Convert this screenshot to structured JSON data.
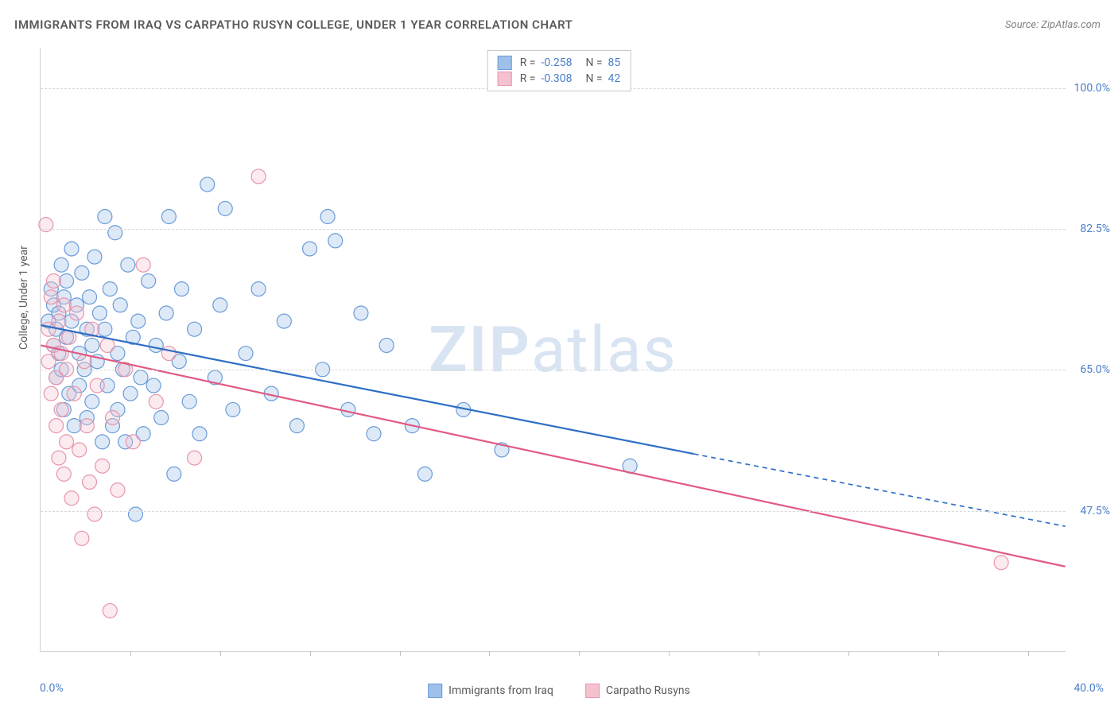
{
  "title": "IMMIGRANTS FROM IRAQ VS CARPATHO RUSYN COLLEGE, UNDER 1 YEAR CORRELATION CHART",
  "source": "Source: ZipAtlas.com",
  "watermark_a": "ZIP",
  "watermark_b": "atlas",
  "y_axis_title": "College, Under 1 year",
  "chart": {
    "type": "scatter",
    "xlim": [
      0,
      40
    ],
    "ylim": [
      30,
      105
    ],
    "x_ticks_minor": [
      3.5,
      7,
      10.5,
      14,
      17.5,
      21,
      24.5,
      28,
      31.5,
      35,
      38.5
    ],
    "x_label_min": "0.0%",
    "x_label_max": "40.0%",
    "y_ticks": [
      {
        "v": 47.5,
        "label": "47.5%"
      },
      {
        "v": 65.0,
        "label": "65.0%"
      },
      {
        "v": 82.5,
        "label": "82.5%"
      },
      {
        "v": 100.0,
        "label": "100.0%"
      }
    ],
    "background_color": "#ffffff",
    "grid_color": "#d8d8d8",
    "marker_radius": 9,
    "marker_fill_opacity": 0.35,
    "marker_stroke_width": 1.2,
    "line_width": 2.2,
    "series": [
      {
        "key": "iraq",
        "label": "Immigrants from Iraq",
        "color_fill": "#9fc0e8",
        "color_stroke": "#6a9bd8",
        "line_color": "#2e6fc4",
        "R": "-0.258",
        "N": "85",
        "reg_start": {
          "x": 0.0,
          "y": 70.5
        },
        "reg_solid_end": {
          "x": 25.5,
          "y": 54.5
        },
        "reg_dash_end": {
          "x": 40.0,
          "y": 45.5
        },
        "points": [
          {
            "x": 0.3,
            "y": 71
          },
          {
            "x": 0.4,
            "y": 75
          },
          {
            "x": 0.5,
            "y": 68
          },
          {
            "x": 0.5,
            "y": 73
          },
          {
            "x": 0.6,
            "y": 70
          },
          {
            "x": 0.6,
            "y": 64
          },
          {
            "x": 0.7,
            "y": 72
          },
          {
            "x": 0.7,
            "y": 67
          },
          {
            "x": 0.8,
            "y": 78
          },
          {
            "x": 0.8,
            "y": 65
          },
          {
            "x": 0.9,
            "y": 74
          },
          {
            "x": 0.9,
            "y": 60
          },
          {
            "x": 1.0,
            "y": 69
          },
          {
            "x": 1.0,
            "y": 76
          },
          {
            "x": 1.1,
            "y": 62
          },
          {
            "x": 1.2,
            "y": 80
          },
          {
            "x": 1.2,
            "y": 71
          },
          {
            "x": 1.3,
            "y": 58
          },
          {
            "x": 1.4,
            "y": 73
          },
          {
            "x": 1.5,
            "y": 67
          },
          {
            "x": 1.5,
            "y": 63
          },
          {
            "x": 1.6,
            "y": 77
          },
          {
            "x": 1.7,
            "y": 65
          },
          {
            "x": 1.8,
            "y": 70
          },
          {
            "x": 1.8,
            "y": 59
          },
          {
            "x": 1.9,
            "y": 74
          },
          {
            "x": 2.0,
            "y": 68
          },
          {
            "x": 2.0,
            "y": 61
          },
          {
            "x": 2.1,
            "y": 79
          },
          {
            "x": 2.2,
            "y": 66
          },
          {
            "x": 2.3,
            "y": 72
          },
          {
            "x": 2.4,
            "y": 56
          },
          {
            "x": 2.5,
            "y": 70
          },
          {
            "x": 2.5,
            "y": 84
          },
          {
            "x": 2.6,
            "y": 63
          },
          {
            "x": 2.7,
            "y": 75
          },
          {
            "x": 2.8,
            "y": 58
          },
          {
            "x": 2.9,
            "y": 82
          },
          {
            "x": 3.0,
            "y": 67
          },
          {
            "x": 3.0,
            "y": 60
          },
          {
            "x": 3.1,
            "y": 73
          },
          {
            "x": 3.2,
            "y": 65
          },
          {
            "x": 3.3,
            "y": 56
          },
          {
            "x": 3.4,
            "y": 78
          },
          {
            "x": 3.5,
            "y": 62
          },
          {
            "x": 3.6,
            "y": 69
          },
          {
            "x": 3.7,
            "y": 47
          },
          {
            "x": 3.8,
            "y": 71
          },
          {
            "x": 3.9,
            "y": 64
          },
          {
            "x": 4.0,
            "y": 57
          },
          {
            "x": 4.2,
            "y": 76
          },
          {
            "x": 4.4,
            "y": 63
          },
          {
            "x": 4.5,
            "y": 68
          },
          {
            "x": 4.7,
            "y": 59
          },
          {
            "x": 4.9,
            "y": 72
          },
          {
            "x": 5.0,
            "y": 84
          },
          {
            "x": 5.2,
            "y": 52
          },
          {
            "x": 5.4,
            "y": 66
          },
          {
            "x": 5.5,
            "y": 75
          },
          {
            "x": 5.8,
            "y": 61
          },
          {
            "x": 6.0,
            "y": 70
          },
          {
            "x": 6.2,
            "y": 57
          },
          {
            "x": 6.5,
            "y": 88
          },
          {
            "x": 6.8,
            "y": 64
          },
          {
            "x": 7.0,
            "y": 73
          },
          {
            "x": 7.2,
            "y": 85
          },
          {
            "x": 7.5,
            "y": 60
          },
          {
            "x": 8.0,
            "y": 67
          },
          {
            "x": 8.5,
            "y": 75
          },
          {
            "x": 9.0,
            "y": 62
          },
          {
            "x": 9.5,
            "y": 71
          },
          {
            "x": 10.0,
            "y": 58
          },
          {
            "x": 10.5,
            "y": 80
          },
          {
            "x": 11.0,
            "y": 65
          },
          {
            "x": 11.2,
            "y": 84
          },
          {
            "x": 11.5,
            "y": 81
          },
          {
            "x": 12.0,
            "y": 60
          },
          {
            "x": 12.5,
            "y": 72
          },
          {
            "x": 13.0,
            "y": 57
          },
          {
            "x": 13.5,
            "y": 68
          },
          {
            "x": 14.5,
            "y": 58
          },
          {
            "x": 15.0,
            "y": 52
          },
          {
            "x": 16.5,
            "y": 60
          },
          {
            "x": 18.0,
            "y": 55
          },
          {
            "x": 23.0,
            "y": 53
          }
        ]
      },
      {
        "key": "rusyn",
        "label": "Carpatho Rusyns",
        "color_fill": "#f4c2cf",
        "color_stroke": "#e894ab",
        "line_color": "#e15a82",
        "R": "-0.308",
        "N": "42",
        "reg_start": {
          "x": 0.0,
          "y": 68.0
        },
        "reg_solid_end": {
          "x": 40.0,
          "y": 40.5
        },
        "reg_dash_end": null,
        "points": [
          {
            "x": 0.2,
            "y": 83
          },
          {
            "x": 0.3,
            "y": 70
          },
          {
            "x": 0.3,
            "y": 66
          },
          {
            "x": 0.4,
            "y": 74
          },
          {
            "x": 0.4,
            "y": 62
          },
          {
            "x": 0.5,
            "y": 68
          },
          {
            "x": 0.5,
            "y": 76
          },
          {
            "x": 0.6,
            "y": 64
          },
          {
            "x": 0.6,
            "y": 58
          },
          {
            "x": 0.7,
            "y": 71
          },
          {
            "x": 0.7,
            "y": 54
          },
          {
            "x": 0.8,
            "y": 67
          },
          {
            "x": 0.8,
            "y": 60
          },
          {
            "x": 0.9,
            "y": 73
          },
          {
            "x": 0.9,
            "y": 52
          },
          {
            "x": 1.0,
            "y": 65
          },
          {
            "x": 1.0,
            "y": 56
          },
          {
            "x": 1.1,
            "y": 69
          },
          {
            "x": 1.2,
            "y": 49
          },
          {
            "x": 1.3,
            "y": 62
          },
          {
            "x": 1.4,
            "y": 72
          },
          {
            "x": 1.5,
            "y": 55
          },
          {
            "x": 1.6,
            "y": 44
          },
          {
            "x": 1.7,
            "y": 66
          },
          {
            "x": 1.8,
            "y": 58
          },
          {
            "x": 1.9,
            "y": 51
          },
          {
            "x": 2.0,
            "y": 70
          },
          {
            "x": 2.1,
            "y": 47
          },
          {
            "x": 2.2,
            "y": 63
          },
          {
            "x": 2.4,
            "y": 53
          },
          {
            "x": 2.6,
            "y": 68
          },
          {
            "x": 2.7,
            "y": 35
          },
          {
            "x": 2.8,
            "y": 59
          },
          {
            "x": 3.0,
            "y": 50
          },
          {
            "x": 3.3,
            "y": 65
          },
          {
            "x": 3.6,
            "y": 56
          },
          {
            "x": 4.0,
            "y": 78
          },
          {
            "x": 4.5,
            "y": 61
          },
          {
            "x": 5.0,
            "y": 67
          },
          {
            "x": 6.0,
            "y": 54
          },
          {
            "x": 8.5,
            "y": 89
          },
          {
            "x": 37.5,
            "y": 41
          }
        ]
      }
    ]
  }
}
